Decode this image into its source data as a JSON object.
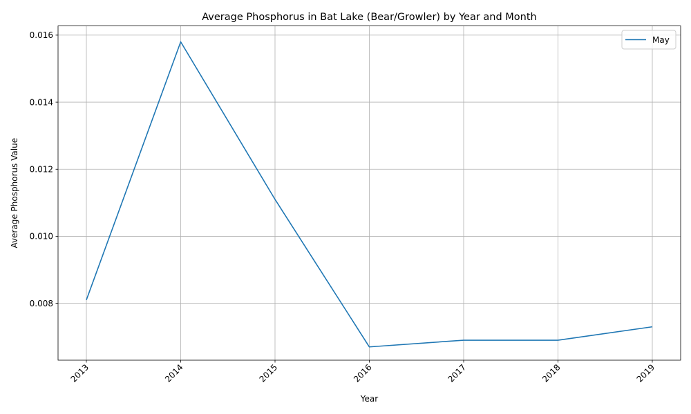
{
  "chart_data": {
    "type": "line",
    "title": "Average Phosphorus in Bat Lake (Bear/Growler) by Year and Month",
    "xlabel": "Year",
    "ylabel": "Average Phosphorus Value",
    "x": [
      "2013",
      "2014",
      "2015",
      "2016",
      "2017",
      "2018",
      "2019"
    ],
    "series": [
      {
        "name": "May",
        "color": "#1f77b4",
        "values": [
          0.0081,
          0.0158,
          0.0111,
          0.0067,
          0.0069,
          0.0069,
          0.0073
        ]
      }
    ],
    "yticks": [
      "0.008",
      "0.010",
      "0.012",
      "0.014",
      "0.016"
    ],
    "ytick_values": [
      0.008,
      0.01,
      0.012,
      0.014,
      0.016
    ],
    "ylim": [
      0.006304,
      0.016276
    ],
    "grid": true,
    "legend_position": "upper right"
  }
}
